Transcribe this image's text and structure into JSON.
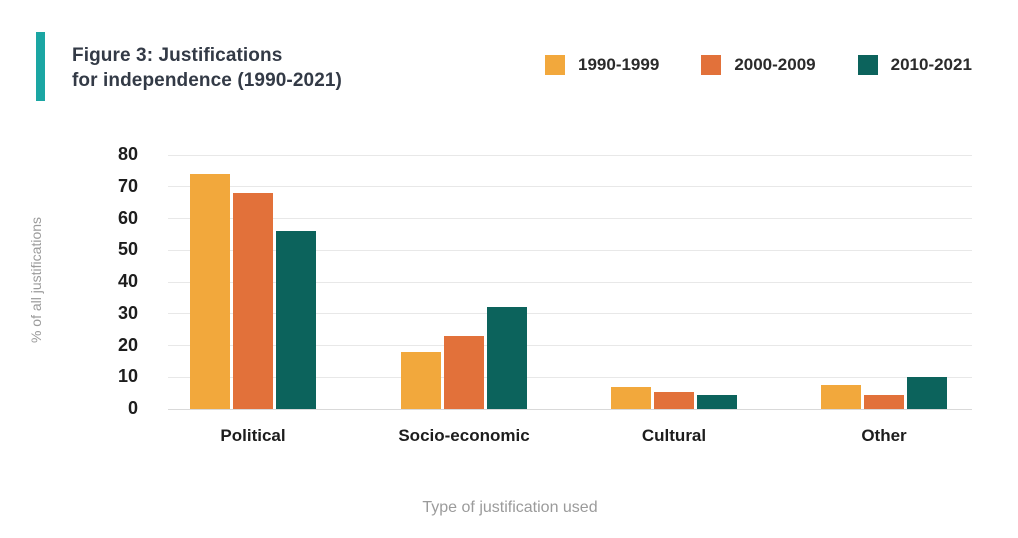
{
  "header": {
    "title_line1": "Figure 3: Justifications",
    "title_line2": "for independence (1990-2021)"
  },
  "colors": {
    "accent_bar": "#1BA6A3",
    "series_1990_1999": "#F2A83C",
    "series_2000_2009": "#E2713A",
    "series_2010_2021": "#0C635C",
    "gridline": "#E8E8E8",
    "baseline": "#D9D9D9",
    "title_text": "#333A46",
    "axis_tick_text": "#1D1D1D",
    "muted_text": "#9B9B9B"
  },
  "chart_data": {
    "type": "bar",
    "title": "Figure 3: Justifications for independence (1990-2021)",
    "categories": [
      "Political",
      "Socio-economic",
      "Cultural",
      "Other"
    ],
    "series": [
      {
        "name": "1990-1999",
        "color": "#F2A83C",
        "values": [
          74,
          18,
          7,
          7.5
        ]
      },
      {
        "name": "2000-2009",
        "color": "#E2713A",
        "values": [
          68,
          23,
          5.5,
          4.5
        ]
      },
      {
        "name": "2010-2021",
        "color": "#0C635C",
        "values": [
          56,
          32,
          4.5,
          10
        ]
      }
    ],
    "xlabel": "Type of justification used",
    "ylabel": "% of all justifications",
    "ylim": [
      0,
      80
    ],
    "yticks": [
      0,
      10,
      20,
      30,
      40,
      50,
      60,
      70,
      80
    ],
    "grid": "horizontal",
    "legend_position": "top-right"
  }
}
